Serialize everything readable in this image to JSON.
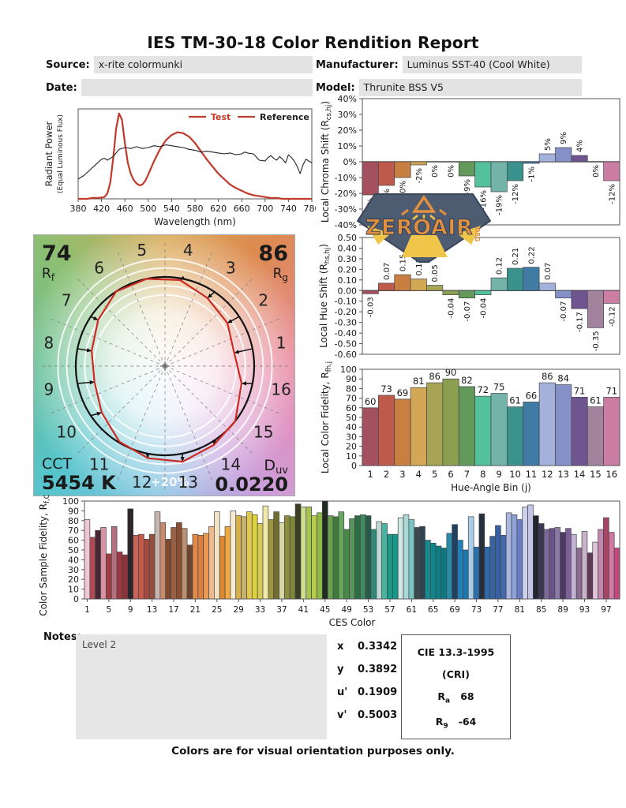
{
  "title": "IES TM-30-18 Color Rendition Report",
  "header": {
    "source_label": "Source:",
    "source_value": "x-rite colormunki",
    "date_label": "Date:",
    "date_value": "",
    "manufacturer_label": "Manufacturer:",
    "manufacturer_value": "Luminus SST-40 (Cool White)",
    "model_label": "Model:",
    "model_value": "Thrunite BSS V5"
  },
  "watermark": {
    "text": "ZEROAIR",
    "sub": "ORG",
    "bg": "#4e5c72",
    "edge": "#3a4558",
    "text_color": "#e0903f",
    "beam_color": "#f0c64a"
  },
  "notes": {
    "label": "Notes:",
    "value": "Level 2"
  },
  "chromaticity": {
    "rows": [
      {
        "label": "x",
        "value": "0.3342"
      },
      {
        "label": "y",
        "value": "0.3892"
      },
      {
        "label": "u'",
        "value": "0.1909"
      },
      {
        "label": "v'",
        "value": "0.5003"
      }
    ]
  },
  "cie_box": {
    "title": "CIE 13.3-1995",
    "subtitle": "(CRI)",
    "ra_pre": "R",
    "ra_sub": "a",
    "ra_value": "68",
    "r9_pre": "R",
    "r9_sub": "9",
    "r9_value": "-64"
  },
  "footer": "Colors are for visual orientation purposes only.",
  "bin_colors": [
    "#a5505e",
    "#bd5a4c",
    "#c87f42",
    "#d2a857",
    "#a8a455",
    "#8c9e50",
    "#63995a",
    "#55c09c",
    "#74b4a8",
    "#3b918c",
    "#3f7ba3",
    "#a3b2da",
    "#8590c6",
    "#6f5590",
    "#a2839d",
    "#cb7da3"
  ],
  "chart_data": [
    {
      "id": "spd",
      "type": "line",
      "xlabel": "Wavelength (nm)",
      "ylabel_line1": "Radiant Power",
      "ylabel_line2": "(Equal Luminous Flux)",
      "xlim": [
        380,
        780
      ],
      "ylim": [
        0,
        1
      ],
      "xticks": [
        380,
        420,
        460,
        500,
        540,
        580,
        620,
        660,
        700,
        740,
        780
      ],
      "legend": [
        {
          "label": "Test",
          "swatch": "#c0392b",
          "text_color": "#c0392b"
        },
        {
          "label": "Reference",
          "swatch": "#b5423a",
          "text_color": "#222222"
        }
      ],
      "series": [
        {
          "name": "Test",
          "color": "#c0392b",
          "width": 2.2,
          "x": [
            380,
            395,
            405,
            415,
            425,
            430,
            435,
            440,
            445,
            450,
            455,
            460,
            465,
            470,
            475,
            480,
            485,
            490,
            495,
            500,
            510,
            520,
            530,
            540,
            550,
            560,
            570,
            580,
            590,
            600,
            610,
            620,
            630,
            640,
            650,
            660,
            670,
            680,
            690,
            700,
            710,
            720,
            730,
            740,
            780
          ],
          "y": [
            0.0,
            0.0,
            0.01,
            0.01,
            0.02,
            0.06,
            0.18,
            0.45,
            0.78,
            0.95,
            0.88,
            0.62,
            0.4,
            0.28,
            0.21,
            0.17,
            0.15,
            0.16,
            0.2,
            0.27,
            0.42,
            0.55,
            0.65,
            0.71,
            0.74,
            0.73,
            0.69,
            0.62,
            0.53,
            0.44,
            0.36,
            0.28,
            0.22,
            0.16,
            0.12,
            0.09,
            0.06,
            0.04,
            0.03,
            0.02,
            0.01,
            0.01,
            0.0,
            0.0,
            0.0
          ]
        },
        {
          "name": "Reference",
          "color": "#23242e",
          "width": 1.1,
          "x": [
            380,
            390,
            400,
            410,
            420,
            425,
            430,
            440,
            450,
            460,
            470,
            480,
            490,
            500,
            510,
            520,
            530,
            540,
            550,
            560,
            570,
            580,
            590,
            600,
            610,
            620,
            630,
            640,
            650,
            660,
            665,
            670,
            680,
            690,
            700,
            705,
            710,
            715,
            720,
            725,
            730,
            735,
            740,
            745,
            750,
            755,
            760,
            765,
            770,
            775,
            780
          ],
          "y": [
            0.22,
            0.26,
            0.32,
            0.38,
            0.44,
            0.45,
            0.43,
            0.47,
            0.55,
            0.57,
            0.56,
            0.58,
            0.56,
            0.57,
            0.59,
            0.58,
            0.6,
            0.59,
            0.58,
            0.57,
            0.55,
            0.54,
            0.52,
            0.53,
            0.52,
            0.51,
            0.5,
            0.51,
            0.49,
            0.5,
            0.52,
            0.51,
            0.5,
            0.43,
            0.42,
            0.46,
            0.48,
            0.45,
            0.43,
            0.47,
            0.44,
            0.4,
            0.49,
            0.46,
            0.42,
            0.36,
            0.28,
            0.38,
            0.44,
            0.42,
            0.4
          ]
        }
      ]
    },
    {
      "id": "chroma_shift",
      "type": "bar",
      "ylabel": {
        "pre": "Local Chroma Shift (R",
        "sub": "cs,hj",
        "post": ")"
      },
      "ylim": [
        -40,
        40
      ],
      "ystep": 10,
      "tick_suffix": "%",
      "categories": [
        1,
        2,
        3,
        4,
        5,
        6,
        7,
        8,
        9,
        10,
        11,
        12,
        13,
        14,
        15,
        16
      ],
      "values": [
        -21,
        -15,
        -10,
        -2,
        0,
        0,
        -9,
        -16,
        -19,
        -12,
        -1,
        5,
        9,
        4,
        0,
        -12
      ],
      "labels": [
        "-21%",
        "-15%",
        "-10%",
        "-2%",
        "0%",
        "0%",
        "-9%",
        "-16%",
        "-19%",
        "-12%",
        "-1%",
        "5%",
        "9%",
        "4%",
        "0%",
        "-12%"
      ]
    },
    {
      "id": "hue_shift",
      "type": "bar",
      "ylabel": {
        "pre": "Local Hue Shift (R",
        "sub": "hs,hj",
        "post": ")"
      },
      "ylim": [
        -0.6,
        0.5
      ],
      "ystep": 0.1,
      "tick_decimals": 2,
      "categories": [
        1,
        2,
        3,
        4,
        5,
        6,
        7,
        8,
        9,
        10,
        11,
        12,
        13,
        14,
        15,
        16
      ],
      "values": [
        -0.03,
        0.07,
        0.15,
        0.11,
        0.05,
        -0.04,
        -0.07,
        -0.04,
        0.12,
        0.21,
        0.22,
        0.07,
        -0.07,
        -0.17,
        -0.35,
        -0.12
      ],
      "labels": [
        "-0.03",
        "0.07",
        "0.15",
        "0.11",
        "0.05",
        "-0.04",
        "-0.07",
        "-0.04",
        "0.12",
        "0.21",
        "0.22",
        "0.07",
        "-0.07",
        "-0.17",
        "-0.35",
        "-0.12"
      ]
    },
    {
      "id": "local_fidelity",
      "type": "bar",
      "ylabel": {
        "pre": "Local Color Fidelity, R",
        "sub": "fh,j",
        "post": ""
      },
      "xlabel": "Hue-Angle Bin (j)",
      "ylim": [
        0,
        100
      ],
      "ystep": 10,
      "categories": [
        1,
        2,
        3,
        4,
        5,
        6,
        7,
        8,
        9,
        10,
        11,
        12,
        13,
        14,
        15,
        16
      ],
      "values": [
        60,
        73,
        69,
        81,
        86,
        90,
        82,
        72,
        75,
        61,
        66,
        86,
        84,
        71,
        61,
        71
      ],
      "labels": [
        "60",
        "73",
        "69",
        "81",
        "86",
        "90",
        "82",
        "72",
        "75",
        "61",
        "66",
        "86",
        "84",
        "71",
        "61",
        "71"
      ]
    },
    {
      "id": "ces_fidelity",
      "type": "bar",
      "ylabel": {
        "pre": "Color Sample Fidelity, R",
        "sub": "f,CESi",
        "post": ""
      },
      "xlabel": "CES Color",
      "ylim": [
        0,
        100
      ],
      "ystep": 10,
      "xtick_labels": [
        1,
        5,
        9,
        13,
        17,
        21,
        25,
        29,
        33,
        37,
        41,
        45,
        49,
        53,
        57,
        61,
        65,
        69,
        73,
        77,
        81,
        85,
        89,
        93,
        97
      ],
      "values": [
        81,
        63,
        70,
        73,
        46,
        74,
        48,
        45,
        92,
        65,
        66,
        61,
        66,
        89,
        78,
        61,
        73,
        78,
        72,
        55,
        66,
        65,
        67,
        74,
        89,
        64,
        74,
        90,
        85,
        84,
        89,
        86,
        77,
        95,
        81,
        89,
        78,
        85,
        84,
        97,
        94,
        94,
        85,
        88,
        100,
        85,
        84,
        89,
        71,
        82,
        85,
        86,
        85,
        71,
        79,
        77,
        66,
        66,
        83,
        86,
        81,
        73,
        74,
        60,
        57,
        54,
        52,
        67,
        76,
        60,
        50,
        84,
        53,
        87,
        53,
        64,
        75,
        65,
        88,
        86,
        81,
        94,
        96,
        85,
        77,
        71,
        72,
        73,
        68,
        72,
        66,
        52,
        69,
        47,
        58,
        71,
        83,
        68,
        52
      ],
      "colors": [
        "#efc6d3",
        "#b04a55",
        "#472832",
        "#d494a2",
        "#a23b44",
        "#b5707e",
        "#9a3842",
        "#8e333c",
        "#2d2429",
        "#cb6356",
        "#c25b49",
        "#a84a3e",
        "#94503c",
        "#c6b6ae",
        "#cb8a6a",
        "#7e4a34",
        "#9c5f40",
        "#8a4f33",
        "#bb9071",
        "#6f452e",
        "#e08a4a",
        "#db7f3b",
        "#e89a55",
        "#f0b98a",
        "#f3e4c5",
        "#e0872f",
        "#f2a93f",
        "#f6ebd1",
        "#d9b245",
        "#c6b273",
        "#e3c84f",
        "#ded23f",
        "#d6cb55",
        "#f0eaaa",
        "#9c9440",
        "#706c2b",
        "#d9d5a9",
        "#8c8c3a",
        "#7f8738",
        "#3b3e23",
        "#cede90",
        "#a4c455",
        "#b5cc45",
        "#8fba4a",
        "#202b20",
        "#6aa050",
        "#407b3b",
        "#66a85e",
        "#4a8a48",
        "#58955c",
        "#2f6e44",
        "#3f8a5f",
        "#2a5a4b",
        "#2f8a78",
        "#bdd9d1",
        "#4ab4a0",
        "#189a86",
        "#16988a",
        "#d0e7e3",
        "#a9d9d5",
        "#7cc4c4",
        "#3a4a4e",
        "#324350",
        "#148a8e",
        "#108486",
        "#0d7e84",
        "#0c7880",
        "#2a8aa8",
        "#224060",
        "#2080b4",
        "#1c78b0",
        "#abcde7",
        "#2a72ac",
        "#272f3d",
        "#2e68a8",
        "#3662a2",
        "#3a5fa0",
        "#4468ae",
        "#aab8e0",
        "#8fa2d8",
        "#6a7cc4",
        "#ccd0ea",
        "#c5c3e7",
        "#242330",
        "#3d3751",
        "#7a6a96",
        "#6a5288",
        "#8a7aa8",
        "#4e3a60",
        "#7d5f9a",
        "#c1b3d3",
        "#8a6a8e",
        "#c9b3c9",
        "#5e3a58",
        "#e1c3d7",
        "#c088ae",
        "#a84464",
        "#d27aa2",
        "#c2487e"
      ]
    },
    {
      "id": "cvg",
      "type": "polar-vector",
      "rf": {
        "value": "74",
        "pre": "R",
        "sub": "f"
      },
      "rg": {
        "value": "86",
        "pre": "R",
        "sub": "g"
      },
      "cct": {
        "label": "CCT",
        "value": "5454 K"
      },
      "duv": {
        "pre": "D",
        "sub": "uv",
        "value": "0.0220"
      },
      "ring_label": "+20%",
      "bins": [
        1,
        2,
        3,
        4,
        5,
        6,
        7,
        8,
        9,
        10,
        11,
        12,
        13,
        14,
        15,
        16
      ],
      "chroma_shift_pct": [
        -21,
        -15,
        -10,
        -2,
        0,
        0,
        -9,
        -16,
        -19,
        -12,
        -1,
        5,
        9,
        4,
        0,
        -12
      ],
      "hue_shift": [
        -0.03,
        0.07,
        0.15,
        0.11,
        0.05,
        -0.04,
        -0.07,
        -0.04,
        0.12,
        0.21,
        0.22,
        0.07,
        -0.07,
        -0.17,
        -0.35,
        -0.12
      ],
      "test_color": "#cc2a22",
      "reference_color": "#111111"
    }
  ]
}
